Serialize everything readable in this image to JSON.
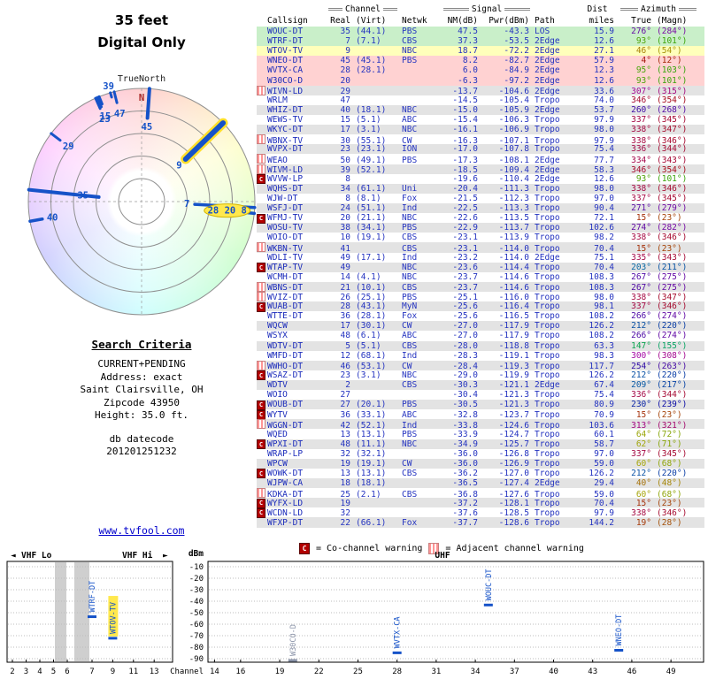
{
  "radar": {
    "title_line1": "35 feet",
    "title_line2": "Digital Only",
    "north_label": "TrueNorth",
    "n_marker": "N",
    "pointer_color": "#1552c8",
    "highlight_color": "#ffdf2b",
    "pointers": [
      {
        "az": 4,
        "r": 0.74,
        "w": 4,
        "label": "45",
        "lr": 0.66
      },
      {
        "az": 46,
        "r": 0.54,
        "w": 6,
        "label": "9",
        "lr": 0.46,
        "highlight": true
      },
      {
        "az": 93,
        "r": 0.47,
        "w": 3.5,
        "label": "7",
        "lr": 0.4
      },
      {
        "az": 96,
        "r": 0.86,
        "w": 3.5,
        "label": "28 20 8",
        "lr": 0.76,
        "circled": true
      },
      {
        "az": 260,
        "r": 0.89,
        "w": 3.5,
        "label": "40",
        "lr": 0.8
      },
      {
        "az": 276,
        "r": 0.38,
        "w": 4,
        "label": "35",
        "lr": 0.52
      },
      {
        "az": 307,
        "r": 0.9,
        "w": 3,
        "label": "29",
        "lr": 0.81
      },
      {
        "az": 336,
        "r": 0.9,
        "w": 3,
        "label": "23",
        "lr": 0.8
      },
      {
        "az": 337,
        "r": 0.91,
        "w": 3,
        "label": "15",
        "lr": 0.82
      },
      {
        "az": 338,
        "r": 0.93,
        "w": 3,
        "label": ""
      },
      {
        "az": 346,
        "r": 0.9,
        "w": 3,
        "label": "47",
        "lr": 0.8
      },
      {
        "az": 344,
        "r": 0.96,
        "w": 3,
        "label": "39",
        "lr": 1.06
      }
    ]
  },
  "search_criteria": {
    "heading": "Search Criteria",
    "lines": [
      "CURRENT+PENDING",
      "Address: exact",
      "Saint Clairsville, OH",
      "Zipcode 43950",
      "Height: 35.0 ft."
    ],
    "db_label": "db datecode",
    "db_value": "201201251232",
    "link": "www.tvfool.com"
  },
  "table": {
    "group_headers": {
      "channel": "Channel",
      "signal": "Signal",
      "dist": "Dist",
      "azimuth": "Azimuth"
    },
    "columns": {
      "callsign": "Callsign",
      "real": "Real",
      "virt": "(Virt)",
      "netwk": "Netwk",
      "nm": "NM(dB)",
      "pwr": "Pwr(dBm)",
      "path": "Path",
      "miles": "miles",
      "true": "True",
      "magn": "(Magn)"
    },
    "row_format": [
      "warning",
      "callsign",
      "real",
      "virt",
      "netwk",
      "nm_db",
      "pwr_dbm",
      "path",
      "miles",
      "azimuth_true",
      "azimuth_magn",
      "bg"
    ],
    "rows": [
      [
        "",
        "WOUC-DT",
        "35",
        "(44.1)",
        "PBS",
        "47.5",
        "-43.3",
        "LOS",
        "15.9",
        276,
        284,
        "green"
      ],
      [
        "",
        "WTRF-DT",
        "7",
        "(7.1)",
        "CBS",
        "37.3",
        "-53.5",
        "2Edge",
        "12.6",
        93,
        101,
        "green"
      ],
      [
        "",
        "WTOV-TV",
        "9",
        "",
        "NBC",
        "18.7",
        "-72.2",
        "2Edge",
        "27.1",
        46,
        54,
        "yellow"
      ],
      [
        "",
        "WNEO-DT",
        "45",
        "(45.1)",
        "PBS",
        "8.2",
        "-82.7",
        "2Edge",
        "57.9",
        4,
        12,
        "pink"
      ],
      [
        "",
        "WVTX-CA",
        "28",
        "(28.1)",
        "",
        "6.0",
        "-84.9",
        "2Edge",
        "12.3",
        95,
        103,
        "pink"
      ],
      [
        "",
        "W30CO-D",
        "20",
        "",
        "",
        "-6.3",
        "-97.2",
        "2Edge",
        "12.6",
        93,
        101,
        "pink"
      ],
      [
        "A",
        "WIVN-LD",
        "29",
        "",
        "",
        "-13.7",
        "-104.6",
        "2Edge",
        "33.6",
        307,
        315,
        ""
      ],
      [
        "",
        "WRLM",
        "47",
        "",
        "",
        "-14.5",
        "-105.4",
        "Tropo",
        "74.0",
        346,
        354,
        ""
      ],
      [
        "",
        "WHIZ-DT",
        "40",
        "(18.1)",
        "NBC",
        "-15.0",
        "-105.9",
        "2Edge",
        "53.7",
        260,
        268,
        ""
      ],
      [
        "",
        "WEWS-TV",
        "15",
        "(5.1)",
        "ABC",
        "-15.4",
        "-106.3",
        "Tropo",
        "97.9",
        337,
        345,
        ""
      ],
      [
        "",
        "WKYC-DT",
        "17",
        "(3.1)",
        "NBC",
        "-16.1",
        "-106.9",
        "Tropo",
        "98.0",
        338,
        347,
        ""
      ],
      [
        "A",
        "WBNX-TV",
        "30",
        "(55.1)",
        "CW",
        "-16.3",
        "-107.1",
        "Tropo",
        "97.9",
        338,
        346,
        ""
      ],
      [
        "",
        "WVPX-DT",
        "23",
        "(23.1)",
        "ION",
        "-17.0",
        "-107.8",
        "Tropo",
        "75.4",
        336,
        344,
        ""
      ],
      [
        "A",
        "WEAO",
        "50",
        "(49.1)",
        "PBS",
        "-17.3",
        "-108.1",
        "2Edge",
        "77.7",
        334,
        343,
        ""
      ],
      [
        "A",
        "WIVM-LD",
        "39",
        "(52.1)",
        "",
        "-18.5",
        "-109.4",
        "2Edge",
        "58.3",
        346,
        354,
        ""
      ],
      [
        "C",
        "WVVW-LP",
        "8",
        "",
        "",
        "-19.6",
        "-110.4",
        "2Edge",
        "12.6",
        93,
        101,
        ""
      ],
      [
        "",
        "WQHS-DT",
        "34",
        "(61.1)",
        "Uni",
        "-20.4",
        "-111.3",
        "Tropo",
        "98.0",
        338,
        346,
        ""
      ],
      [
        "",
        "WJW-DT",
        "8",
        "(8.1)",
        "Fox",
        "-21.5",
        "-112.3",
        "Tropo",
        "97.0",
        337,
        345,
        ""
      ],
      [
        "",
        "WSFJ-DT",
        "24",
        "(51.1)",
        "Ind",
        "-22.5",
        "-113.3",
        "Tropo",
        "90.4",
        271,
        279,
        ""
      ],
      [
        "C",
        "WFMJ-TV",
        "20",
        "(21.1)",
        "NBC",
        "-22.6",
        "-113.5",
        "Tropo",
        "72.1",
        15,
        23,
        ""
      ],
      [
        "",
        "WOSU-TV",
        "38",
        "(34.1)",
        "PBS",
        "-22.9",
        "-113.7",
        "Tropo",
        "102.6",
        274,
        282,
        ""
      ],
      [
        "",
        "WOIO-DT",
        "10",
        "(19.1)",
        "CBS",
        "-23.1",
        "-113.9",
        "Tropo",
        "98.2",
        338,
        346,
        ""
      ],
      [
        "A",
        "WKBN-TV",
        "41",
        "",
        "CBS",
        "-23.1",
        "-114.0",
        "Tropo",
        "70.4",
        15,
        23,
        ""
      ],
      [
        "",
        "WDLI-TV",
        "49",
        "(17.1)",
        "Ind",
        "-23.2",
        "-114.0",
        "2Edge",
        "75.1",
        335,
        343,
        ""
      ],
      [
        "C",
        "WTAP-TV",
        "49",
        "",
        "NBC",
        "-23.6",
        "-114.4",
        "Tropo",
        "70.4",
        203,
        211,
        ""
      ],
      [
        "",
        "WCMH-DT",
        "14",
        "(4.1)",
        "NBC",
        "-23.7",
        "-114.6",
        "Tropo",
        "108.3",
        267,
        275,
        ""
      ],
      [
        "A",
        "WBNS-DT",
        "21",
        "(10.1)",
        "CBS",
        "-23.7",
        "-114.6",
        "Tropo",
        "108.3",
        267,
        275,
        ""
      ],
      [
        "A",
        "WVIZ-DT",
        "26",
        "(25.1)",
        "PBS",
        "-25.1",
        "-116.0",
        "Tropo",
        "98.0",
        338,
        347,
        ""
      ],
      [
        "C",
        "WUAB-DT",
        "28",
        "(43.1)",
        "MyN",
        "-25.6",
        "-116.4",
        "Tropo",
        "98.1",
        337,
        346,
        ""
      ],
      [
        "",
        "WTTE-DT",
        "36",
        "(28.1)",
        "Fox",
        "-25.6",
        "-116.5",
        "Tropo",
        "108.2",
        266,
        274,
        ""
      ],
      [
        "",
        "WQCW",
        "17",
        "(30.1)",
        "CW",
        "-27.0",
        "-117.9",
        "Tropo",
        "126.2",
        212,
        220,
        ""
      ],
      [
        "",
        "WSYX",
        "48",
        "(6.1)",
        "ABC",
        "-27.0",
        "-117.9",
        "Tropo",
        "108.2",
        266,
        274,
        ""
      ],
      [
        "",
        "WDTV-DT",
        "5",
        "(5.1)",
        "CBS",
        "-28.0",
        "-118.8",
        "Tropo",
        "63.3",
        147,
        155,
        ""
      ],
      [
        "",
        "WMFD-DT",
        "12",
        "(68.1)",
        "Ind",
        "-28.3",
        "-119.1",
        "Tropo",
        "98.3",
        300,
        308,
        ""
      ],
      [
        "A",
        "WWHO-DT",
        "46",
        "(53.1)",
        "CW",
        "-28.4",
        "-119.3",
        "Tropo",
        "117.7",
        254,
        263,
        ""
      ],
      [
        "C",
        "WSAZ-DT",
        "23",
        "(3.1)",
        "NBC",
        "-29.0",
        "-119.9",
        "Tropo",
        "126.2",
        212,
        220,
        ""
      ],
      [
        "",
        "WDTV",
        "2",
        "",
        "CBS",
        "-30.3",
        "-121.1",
        "2Edge",
        "67.4",
        209,
        217,
        ""
      ],
      [
        "",
        "WOIO",
        "27",
        "",
        "",
        "-30.4",
        "-121.3",
        "Tropo",
        "75.4",
        336,
        344,
        ""
      ],
      [
        "C",
        "WOUB-DT",
        "27",
        "(20.1)",
        "PBS",
        "-30.5",
        "-121.3",
        "Tropo",
        "80.9",
        230,
        239,
        ""
      ],
      [
        "C",
        "WYTV",
        "36",
        "(33.1)",
        "ABC",
        "-32.8",
        "-123.7",
        "Tropo",
        "70.9",
        15,
        23,
        ""
      ],
      [
        "A",
        "WGGN-DT",
        "42",
        "(52.1)",
        "Ind",
        "-33.8",
        "-124.6",
        "Tropo",
        "103.6",
        313,
        321,
        ""
      ],
      [
        "",
        "WQED",
        "13",
        "(13.1)",
        "PBS",
        "-33.9",
        "-124.7",
        "Tropo",
        "60.1",
        64,
        72,
        ""
      ],
      [
        "C",
        "WPXI-DT",
        "48",
        "(11.1)",
        "NBC",
        "-34.9",
        "-125.7",
        "Tropo",
        "58.7",
        62,
        71,
        ""
      ],
      [
        "",
        "WRAP-LP",
        "32",
        "(32.1)",
        "",
        "-36.0",
        "-126.8",
        "Tropo",
        "97.0",
        337,
        345,
        ""
      ],
      [
        "",
        "WPCW",
        "19",
        "(19.1)",
        "CW",
        "-36.0",
        "-126.9",
        "Tropo",
        "59.0",
        60,
        68,
        ""
      ],
      [
        "C",
        "WOWK-DT",
        "13",
        "(13.1)",
        "CBS",
        "-36.2",
        "-127.0",
        "Tropo",
        "126.2",
        212,
        220,
        ""
      ],
      [
        "",
        "WJPW-CA",
        "18",
        "(18.1)",
        "",
        "-36.5",
        "-127.4",
        "2Edge",
        "29.4",
        40,
        48,
        ""
      ],
      [
        "A",
        "KDKA-DT",
        "25",
        "(2.1)",
        "CBS",
        "-36.8",
        "-127.6",
        "Tropo",
        "59.0",
        60,
        68,
        ""
      ],
      [
        "C",
        "WYFX-LD",
        "19",
        "",
        "",
        "-37.2",
        "-128.1",
        "Tropo",
        "70.4",
        15,
        23,
        ""
      ],
      [
        "C",
        "WCDN-LD",
        "32",
        "",
        "",
        "-37.6",
        "-128.5",
        "Tropo",
        "97.9",
        338,
        346,
        ""
      ],
      [
        "",
        "WFXP-DT",
        "22",
        "(66.1)",
        "Fox",
        "-37.7",
        "-128.6",
        "Tropo",
        "144.2",
        19,
        28,
        ""
      ]
    ]
  },
  "legend": {
    "co_icon": "C",
    "co_text": "= Co-channel warning",
    "adj_text": "= Adjacent channel warning"
  },
  "chart": {
    "dbm_label": "dBm",
    "dbm_ticks": [
      -10,
      -20,
      -30,
      -40,
      -50,
      -60,
      -70,
      -80,
      -90
    ],
    "channel_word": "Channel",
    "bands": [
      {
        "name": "VHF Lo"
      },
      {
        "name": "VHF Hi"
      },
      {
        "name": "UHF"
      }
    ],
    "vhf_ticks": [
      2,
      3,
      4,
      5,
      6,
      7,
      9,
      11,
      13
    ],
    "uhf_ticks": [
      14,
      16,
      19,
      22,
      25,
      28,
      31,
      34,
      37,
      40,
      43,
      46,
      49
    ],
    "markers": [
      {
        "callsign": "WTRF-DT",
        "ch": 7,
        "dbm": -53.5,
        "band": "vhf"
      },
      {
        "callsign": "WTOV-TV",
        "ch": 9,
        "dbm": -72.2,
        "band": "vhf",
        "highlight": true
      },
      {
        "callsign": "W30CO-D",
        "ch": 20,
        "dbm": -97.2,
        "band": "uhf",
        "dim": true
      },
      {
        "callsign": "WVTX-CA",
        "ch": 28,
        "dbm": -84.9,
        "band": "uhf"
      },
      {
        "callsign": "WOUC-DT",
        "ch": 35,
        "dbm": -43.3,
        "band": "uhf"
      },
      {
        "callsign": "WNEO-DT",
        "ch": 45,
        "dbm": -82.7,
        "band": "uhf"
      }
    ]
  }
}
